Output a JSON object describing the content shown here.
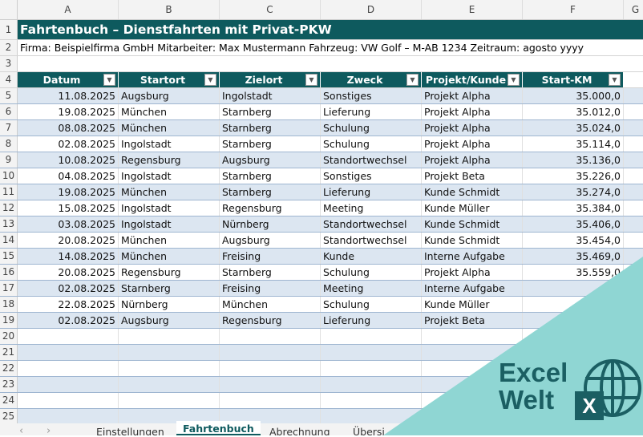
{
  "columns": [
    "A",
    "B",
    "C",
    "D",
    "E",
    "F"
  ],
  "title": "Fahrtenbuch – Dienstfahrten mit Privat-PKW",
  "info": "Firma: Beispielfirma GmbH   Mitarbeiter: Max Mustermann   Fahrzeug: VW Golf – M-AB 1234   Zeitraum: agosto yyyy",
  "headers": [
    "Datum",
    "Startort",
    "Zielort",
    "Zweck",
    "Projekt/Kunde",
    "Start-KM"
  ],
  "rows": [
    [
      "11.08.2025",
      "Augsburg",
      "Ingolstadt",
      "Sonstiges",
      "Projekt Alpha",
      "35.000,0"
    ],
    [
      "19.08.2025",
      "München",
      "Starnberg",
      "Lieferung",
      "Projekt Alpha",
      "35.012,0"
    ],
    [
      "08.08.2025",
      "München",
      "Starnberg",
      "Schulung",
      "Projekt Alpha",
      "35.024,0"
    ],
    [
      "02.08.2025",
      "Ingolstadt",
      "Starnberg",
      "Schulung",
      "Projekt Alpha",
      "35.114,0"
    ],
    [
      "10.08.2025",
      "Regensburg",
      "Augsburg",
      "Standortwechsel",
      "Projekt Alpha",
      "35.136,0"
    ],
    [
      "04.08.2025",
      "Ingolstadt",
      "Starnberg",
      "Sonstiges",
      "Projekt Beta",
      "35.226,0"
    ],
    [
      "19.08.2025",
      "München",
      "Starnberg",
      "Lieferung",
      "Kunde Schmidt",
      "35.274,0"
    ],
    [
      "15.08.2025",
      "Ingolstadt",
      "Regensburg",
      "Meeting",
      "Kunde Müller",
      "35.384,0"
    ],
    [
      "03.08.2025",
      "Ingolstadt",
      "Nürnberg",
      "Standortwechsel",
      "Kunde Schmidt",
      "35.406,0"
    ],
    [
      "20.08.2025",
      "München",
      "Augsburg",
      "Standortwechsel",
      "Kunde Schmidt",
      "35.454,0"
    ],
    [
      "14.08.2025",
      "München",
      "Freising",
      "Kunde",
      "Interne Aufgabe",
      "35.469,0"
    ],
    [
      "20.08.2025",
      "Regensburg",
      "Starnberg",
      "Schulung",
      "Projekt Alpha",
      "35.559,0"
    ],
    [
      "02.08.2025",
      "Starnberg",
      "Freising",
      "Meeting",
      "Interne Aufgabe",
      ""
    ],
    [
      "22.08.2025",
      "Nürnberg",
      "München",
      "Schulung",
      "Kunde Müller",
      ""
    ],
    [
      "02.08.2025",
      "Augsburg",
      "Regensburg",
      "Lieferung",
      "Projekt Beta",
      ""
    ]
  ],
  "sheet_tabs": [
    "Einstellungen",
    "Fahrtenbuch",
    "Abrechnung",
    "Übersi"
  ],
  "active_tab": "Fahrtenbuch",
  "logo": {
    "line1": "Excel",
    "line2": "Welt",
    "badge": "X"
  },
  "colors": {
    "header": "#0e5a5e",
    "band": "#dce6f1",
    "overlay": "#8fd6d3",
    "logo": "#1b5f63"
  }
}
